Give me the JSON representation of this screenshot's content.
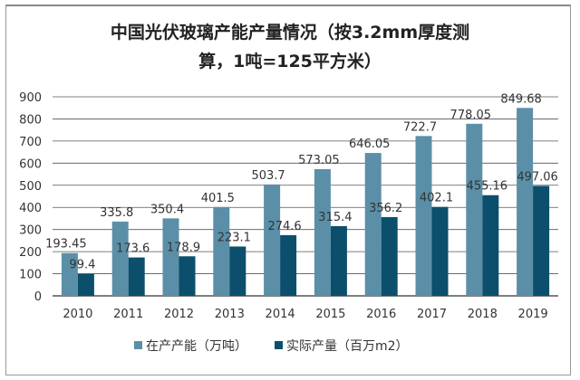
{
  "chart_data": {
    "type": "bar",
    "title_line1": "中国光伏玻璃产能产量情况（按3.2mm厚度测",
    "title_line2": "算，1吨=125平方米）",
    "categories": [
      "2010",
      "2011",
      "2012",
      "2013",
      "2014",
      "2015",
      "2016",
      "2017",
      "2018",
      "2019"
    ],
    "series": [
      {
        "name": "在产产能（万吨）",
        "color": "#5b8fa8",
        "values": [
          193.45,
          335.8,
          350.4,
          401.5,
          503.7,
          573.05,
          646.05,
          722.7,
          778.05,
          849.68
        ]
      },
      {
        "name": "实际产量（百万m2）",
        "color": "#0b4f6c",
        "values": [
          99.4,
          173.6,
          178.9,
          223.1,
          274.6,
          315.4,
          356.2,
          402.1,
          455.16,
          497.06
        ]
      }
    ],
    "ylim": [
      0,
      900
    ],
    "yticks": [
      0,
      100,
      200,
      300,
      400,
      500,
      600,
      700,
      800,
      900
    ],
    "grid": true,
    "legend": "bottom",
    "xlabel": "",
    "ylabel": ""
  }
}
